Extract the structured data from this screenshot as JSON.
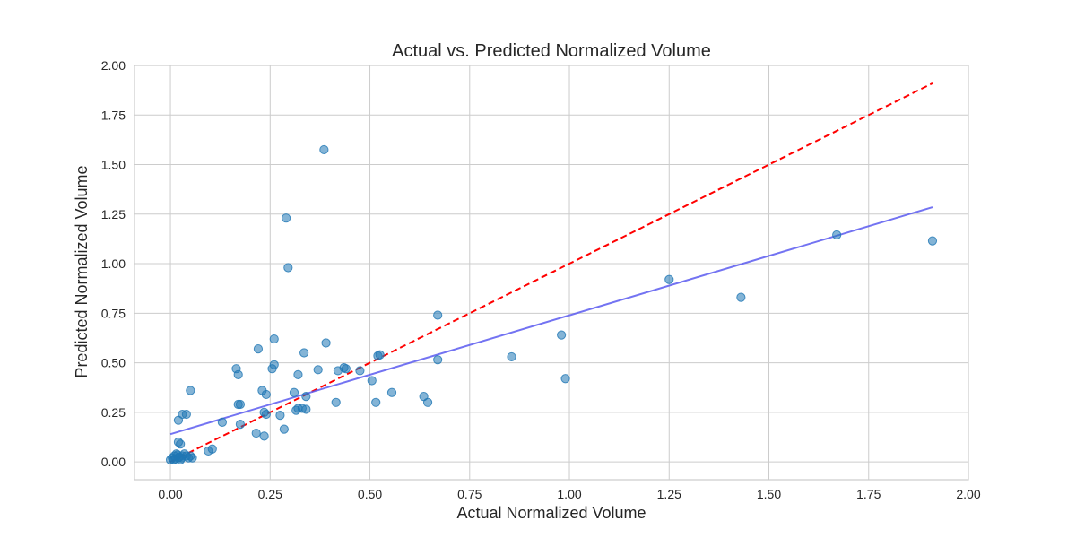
{
  "chart_data": {
    "type": "scatter",
    "title": "Actual vs. Predicted Normalized Volume",
    "xlabel": "Actual Normalized Volume",
    "ylabel": "Predicted Normalized Volume",
    "xlim": [
      -0.09,
      2.0
    ],
    "ylim": [
      -0.09,
      2.0
    ],
    "xticks": [
      "0.00",
      "0.25",
      "0.50",
      "0.75",
      "1.00",
      "1.25",
      "1.50",
      "1.75",
      "2.00"
    ],
    "yticks": [
      "0.00",
      "0.25",
      "0.50",
      "0.75",
      "1.00",
      "1.25",
      "1.50",
      "1.75",
      "2.00"
    ],
    "grid": true,
    "colors": {
      "points": "#1f77b4",
      "fit_line": "#5b5bf0",
      "reference_line": "#ff0000",
      "grid": "#cccccc",
      "frame": "#cccccc"
    },
    "points": [
      [
        0.0,
        0.01
      ],
      [
        0.005,
        0.02
      ],
      [
        0.01,
        0.03
      ],
      [
        0.015,
        0.04
      ],
      [
        0.02,
        0.02
      ],
      [
        0.025,
        0.01
      ],
      [
        0.03,
        0.03
      ],
      [
        0.035,
        0.04
      ],
      [
        0.04,
        0.03
      ],
      [
        0.045,
        0.02
      ],
      [
        0.05,
        0.03
      ],
      [
        0.055,
        0.02
      ],
      [
        0.012,
        0.015
      ],
      [
        0.022,
        0.025
      ],
      [
        0.028,
        0.02
      ],
      [
        0.018,
        0.035
      ],
      [
        0.008,
        0.01
      ],
      [
        0.02,
        0.1
      ],
      [
        0.025,
        0.09
      ],
      [
        0.02,
        0.21
      ],
      [
        0.03,
        0.24
      ],
      [
        0.04,
        0.24
      ],
      [
        0.05,
        0.36
      ],
      [
        0.095,
        0.055
      ],
      [
        0.105,
        0.065
      ],
      [
        0.13,
        0.2
      ],
      [
        0.165,
        0.47
      ],
      [
        0.17,
        0.44
      ],
      [
        0.17,
        0.29
      ],
      [
        0.175,
        0.29
      ],
      [
        0.175,
        0.19
      ],
      [
        0.215,
        0.145
      ],
      [
        0.22,
        0.57
      ],
      [
        0.23,
        0.36
      ],
      [
        0.235,
        0.25
      ],
      [
        0.235,
        0.13
      ],
      [
        0.24,
        0.34
      ],
      [
        0.24,
        0.24
      ],
      [
        0.255,
        0.47
      ],
      [
        0.26,
        0.49
      ],
      [
        0.26,
        0.62
      ],
      [
        0.275,
        0.235
      ],
      [
        0.285,
        0.165
      ],
      [
        0.29,
        1.23
      ],
      [
        0.295,
        0.98
      ],
      [
        0.31,
        0.35
      ],
      [
        0.315,
        0.26
      ],
      [
        0.32,
        0.44
      ],
      [
        0.32,
        0.27
      ],
      [
        0.33,
        0.27
      ],
      [
        0.335,
        0.55
      ],
      [
        0.34,
        0.265
      ],
      [
        0.34,
        0.33
      ],
      [
        0.37,
        0.465
      ],
      [
        0.385,
        1.575
      ],
      [
        0.39,
        0.6
      ],
      [
        0.415,
        0.3
      ],
      [
        0.42,
        0.46
      ],
      [
        0.435,
        0.475
      ],
      [
        0.44,
        0.47
      ],
      [
        0.475,
        0.46
      ],
      [
        0.505,
        0.41
      ],
      [
        0.515,
        0.3
      ],
      [
        0.52,
        0.535
      ],
      [
        0.525,
        0.54
      ],
      [
        0.555,
        0.35
      ],
      [
        0.635,
        0.33
      ],
      [
        0.645,
        0.3
      ],
      [
        0.67,
        0.74
      ],
      [
        0.67,
        0.515
      ],
      [
        0.855,
        0.53
      ],
      [
        0.98,
        0.64
      ],
      [
        0.99,
        0.42
      ],
      [
        1.25,
        0.92
      ],
      [
        1.43,
        0.83
      ],
      [
        1.67,
        1.145
      ],
      [
        1.91,
        1.115
      ]
    ],
    "fit_line": {
      "x": [
        0.0,
        1.91
      ],
      "y": [
        0.14,
        1.285
      ]
    },
    "reference_line": {
      "x": [
        0.0,
        1.91
      ],
      "y": [
        0.0,
        1.91
      ]
    }
  }
}
